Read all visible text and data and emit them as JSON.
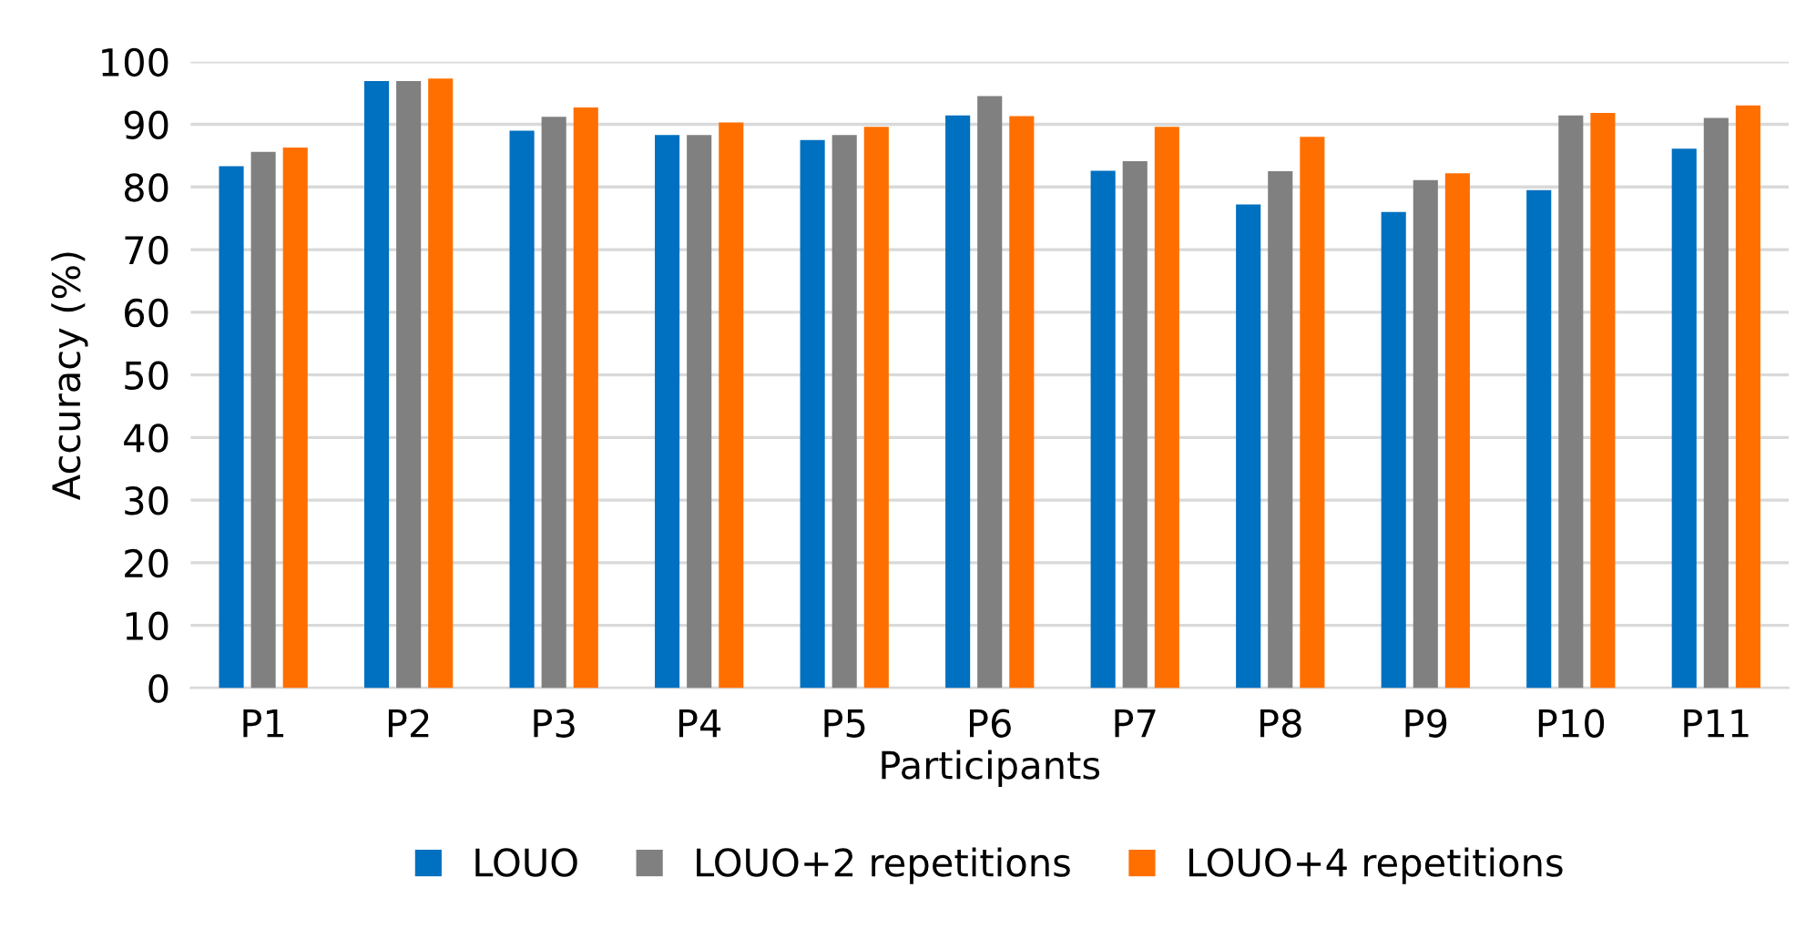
{
  "chart_data": {
    "type": "bar",
    "xlabel": "Participants",
    "ylabel": "Accuracy (%)",
    "categories": [
      "P1",
      "P2",
      "P3",
      "P4",
      "P5",
      "P6",
      "P7",
      "P8",
      "P9",
      "P10",
      "P11"
    ],
    "series": [
      {
        "name": "LOUO",
        "color": "#0070c0",
        "values": [
          83.3,
          96.9,
          89.0,
          88.3,
          87.5,
          91.4,
          82.6,
          77.2,
          76.0,
          79.5,
          86.1
        ]
      },
      {
        "name": "LOUO+2 repetitions",
        "color": "#808080",
        "values": [
          85.6,
          96.9,
          91.2,
          88.3,
          88.3,
          94.5,
          84.1,
          82.5,
          81.1,
          91.4,
          91.0
        ]
      },
      {
        "name": "LOUO+4 repetitions",
        "color": "#ff6f00",
        "values": [
          86.3,
          97.3,
          92.7,
          90.3,
          89.6,
          91.3,
          89.6,
          88.0,
          82.2,
          91.8,
          93.0
        ]
      }
    ],
    "ylim": [
      0,
      100
    ],
    "yticks": [
      0,
      10,
      20,
      30,
      40,
      50,
      60,
      70,
      80,
      90,
      100
    ],
    "grid": "y",
    "legend": "bottom"
  }
}
